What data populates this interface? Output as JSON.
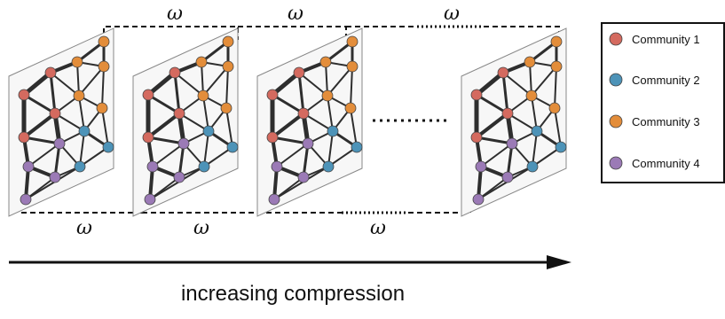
{
  "omega_label": "ω",
  "caption": "increasing compression",
  "legend": [
    {
      "label": "Community 1",
      "color": "#d46a5f"
    },
    {
      "label": "Community 2",
      "color": "#4d93b8"
    },
    {
      "label": "Community 3",
      "color": "#e38d3a"
    },
    {
      "label": "Community 4",
      "color": "#9b7ab6"
    }
  ],
  "icons": [
    "network-layer",
    "dotted-continuation",
    "direction-arrow"
  ]
}
